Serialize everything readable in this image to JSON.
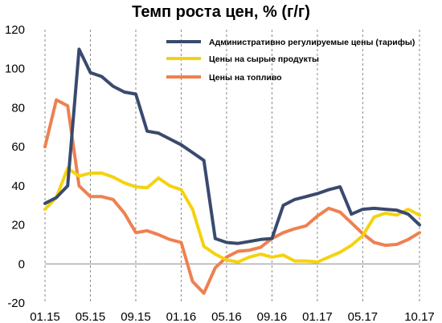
{
  "chart_data": {
    "type": "line",
    "title": "Темп роста цен, % (г/г)",
    "xlabel": "",
    "ylabel": "",
    "ylim": [
      -20,
      120
    ],
    "y_ticks": [
      -20,
      0,
      20,
      40,
      60,
      80,
      100,
      120
    ],
    "x_tick_labels": [
      "01.15",
      "05.15",
      "09.15",
      "01.16",
      "05.16",
      "09.16",
      "01.17",
      "05.17",
      "10.17"
    ],
    "x_tick_index": [
      0,
      4,
      8,
      12,
      16,
      20,
      24,
      28,
      33
    ],
    "grid": "vertical-dashed",
    "legend_position": "top-right",
    "x": [
      "01.15",
      "02.15",
      "03.15",
      "04.15",
      "05.15",
      "06.15",
      "07.15",
      "08.15",
      "09.15",
      "10.15",
      "11.15",
      "12.15",
      "01.16",
      "02.16",
      "03.16",
      "04.16",
      "05.16",
      "06.16",
      "07.16",
      "08.16",
      "09.16",
      "10.16",
      "11.16",
      "12.16",
      "01.17",
      "02.17",
      "03.17",
      "04.17",
      "05.17",
      "06.17",
      "07.17",
      "08.17",
      "09.17",
      "10.17"
    ],
    "series": [
      {
        "name": "Административно регулируемые цены (тарифы)",
        "color": "#3a4a6e",
        "values": [
          31,
          34,
          40,
          110,
          98,
          96,
          91,
          88,
          87,
          68,
          67,
          64,
          61,
          57,
          53,
          13,
          11,
          10.5,
          11.5,
          12.5,
          13,
          30,
          33,
          34.5,
          36,
          38,
          39.5,
          25.5,
          28,
          28.5,
          28,
          27.5,
          25.5,
          20
        ]
      },
      {
        "name": "Цены на сырые продукты",
        "color": "#f5d20f",
        "values": [
          28,
          34,
          49,
          45,
          46.5,
          46.5,
          44.5,
          41.5,
          39.5,
          39,
          44,
          40,
          38,
          28,
          9,
          5,
          2,
          1,
          3.5,
          5,
          3.5,
          4.5,
          1.5,
          1.5,
          1,
          3.5,
          6,
          9.5,
          14.5,
          24,
          26,
          25,
          28,
          25
        ]
      },
      {
        "name": "Цены на топливо",
        "color": "#ef8050",
        "values": [
          60,
          84,
          81,
          40,
          34.5,
          34.5,
          33,
          26,
          16,
          17,
          15,
          12.5,
          11,
          -9,
          -15,
          -2,
          3.5,
          6.5,
          7,
          8.5,
          13,
          16,
          18,
          19.5,
          24.5,
          28.5,
          26.5,
          21,
          15.5,
          11,
          9.5,
          10,
          12.5,
          16
        ]
      }
    ]
  }
}
